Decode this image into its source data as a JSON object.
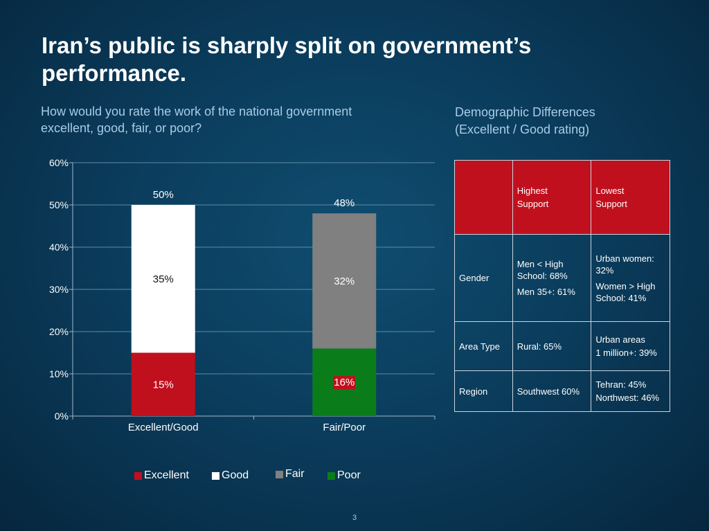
{
  "slide": {
    "title_line1": "Iran’s public is sharply split on government’s",
    "title_line2": "performance.",
    "question_line1": "How would you rate the work of the national government",
    "question_line2": "excellent, good, fair, or poor?",
    "page_number": "3"
  },
  "colors": {
    "excellent": "#c0101e",
    "good": "#ffffff",
    "fair": "#808080",
    "poor": "#0a7d1a",
    "gridline": "#5d8aa8"
  },
  "chart_data": {
    "type": "bar",
    "stacked": true,
    "categories": [
      "Excellent/Good",
      "Fair/Poor"
    ],
    "series": [
      {
        "name": "Excellent",
        "values": [
          15,
          null
        ],
        "labels": [
          "15%",
          ""
        ]
      },
      {
        "name": "Good",
        "values": [
          35,
          null
        ],
        "labels": [
          "35%",
          ""
        ]
      },
      {
        "name": "Fair",
        "values": [
          null,
          32
        ],
        "labels": [
          "",
          "32%"
        ]
      },
      {
        "name": "Poor",
        "values": [
          null,
          16
        ],
        "labels": [
          "",
          "16%"
        ]
      }
    ],
    "stack_order": [
      [
        "Excellent",
        "Good"
      ],
      [
        "Poor",
        "Fair"
      ]
    ],
    "totals": [
      "50%",
      "48%"
    ],
    "ylim": [
      0,
      60
    ],
    "yticks": [
      0,
      10,
      20,
      30,
      40,
      50,
      60
    ],
    "ytick_labels": [
      "0%",
      "10%",
      "20%",
      "30%",
      "40%",
      "50%",
      "60%"
    ],
    "grid": true,
    "legend_position": "bottom",
    "legend": [
      "Excellent",
      "Good",
      "Fair",
      "Poor"
    ]
  },
  "demographics": {
    "heading_line1": "Demographic Differences",
    "heading_line2": "(Excellent / Good rating)",
    "header": {
      "blank": "",
      "highest_line1": "Highest",
      "highest_line2": "Support",
      "lowest_line1": "Lowest",
      "lowest_line2": "Support"
    },
    "rows": [
      {
        "label": "Gender",
        "highest_a": "Men < High School: 68%",
        "highest_b": "Men 35+: 61%",
        "lowest_a": "Urban women: 32%",
        "lowest_b": "Women > High School: 41%"
      },
      {
        "label": "Area Type",
        "highest_a": "Rural: 65%",
        "lowest_a": "Urban areas",
        "lowest_b": "1 million+: 39%"
      },
      {
        "label": "Region",
        "highest_a": "Southwest 60%",
        "lowest_a": "Tehran: 45%",
        "lowest_b": "Northwest: 46%"
      }
    ]
  }
}
